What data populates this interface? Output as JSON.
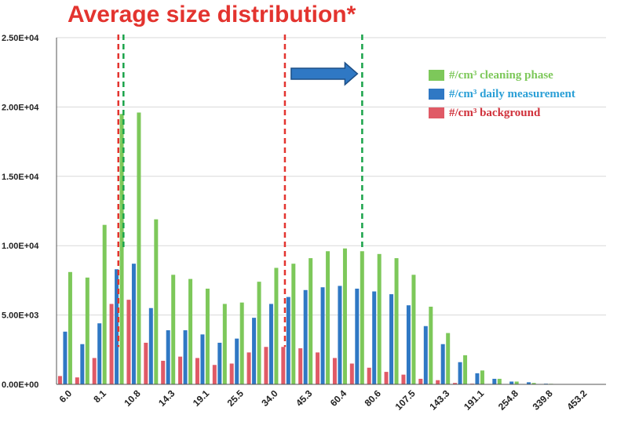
{
  "chart_data": {
    "type": "bar",
    "title": "Average size distribution*",
    "ylim": [
      0,
      25000
    ],
    "yticks": [
      "0.00E+00",
      "5.00E+03",
      "1.00E+04",
      "1.50E+04",
      "2.00E+04",
      "2.50E+04"
    ],
    "x_tick_labels": [
      "6.0",
      "8.1",
      "10.8",
      "14.3",
      "19.1",
      "25.5",
      "34.0",
      "45.3",
      "60.4",
      "80.6",
      "107.5",
      "143.3",
      "191.1",
      "254.8",
      "339.8",
      "453.2"
    ],
    "legend_position": "right",
    "series": [
      {
        "name": "#/cm³ background",
        "color": "#e05a66",
        "values": [
          600,
          500,
          1900,
          5800,
          6100,
          3000,
          1700,
          2000,
          1900,
          1400,
          1500,
          2300,
          2700,
          2700,
          2600,
          2300,
          1900,
          1500,
          1200,
          900,
          700,
          400,
          300,
          100,
          50,
          30,
          20,
          10,
          0,
          0,
          0,
          0
        ]
      },
      {
        "name": "#/cm³ daily measurement",
        "color": "#2f78c4",
        "values": [
          3800,
          2900,
          4400,
          8300,
          8700,
          5500,
          3900,
          3900,
          3600,
          3000,
          3300,
          4800,
          5800,
          6300,
          6800,
          7000,
          7100,
          6900,
          6700,
          6500,
          5700,
          4200,
          2900,
          1600,
          800,
          400,
          200,
          150,
          50,
          20,
          10,
          0
        ]
      },
      {
        "name": "#/cm³ cleaning phase",
        "color": "#7dc85a",
        "values": [
          8100,
          7700,
          11500,
          19500,
          19600,
          11900,
          7900,
          7600,
          6900,
          5800,
          5900,
          7400,
          8400,
          8700,
          9100,
          9600,
          9800,
          9600,
          9400,
          9100,
          7900,
          5600,
          3700,
          2100,
          1000,
          400,
          200,
          100,
          40,
          20,
          10,
          0
        ]
      }
    ],
    "annotations": {
      "red_dashed_lines_at_bin": [
        3.6,
        13.3
      ],
      "green_dashed_lines_at_bin": [
        3.9,
        17.8
      ],
      "arrow_color": "#2f78c4"
    }
  },
  "colors": {
    "title": "#e3342f",
    "axis": "#555555",
    "grid": "#d8d8d8",
    "red_line": "#e3342f",
    "green_line": "#1aa34a"
  }
}
